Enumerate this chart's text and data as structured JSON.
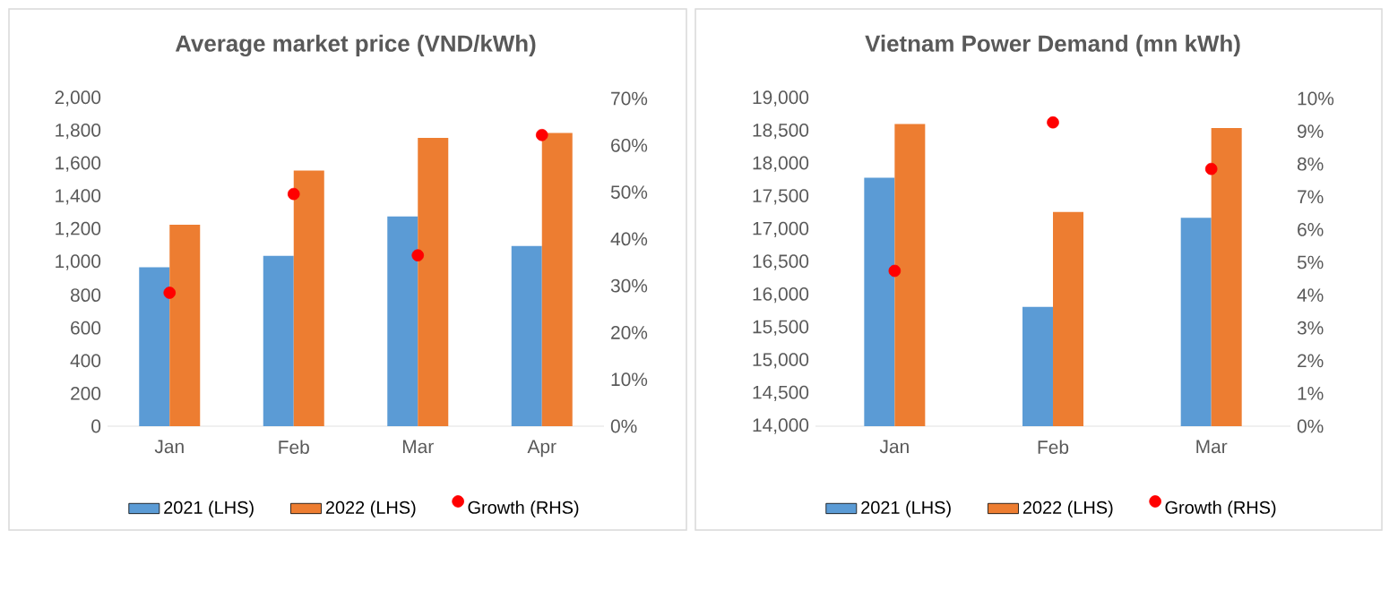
{
  "chart_data": [
    {
      "type": "bar",
      "title": "Average market price (VND/kWh)",
      "categories": [
        "Jan",
        "Feb",
        "Mar",
        "Apr"
      ],
      "series": [
        {
          "name": "2021 (LHS)",
          "color": "#5b9bd5",
          "values": [
            970,
            1040,
            1280,
            1100
          ]
        },
        {
          "name": "2022 (LHS)",
          "color": "#ed7d31",
          "values": [
            1230,
            1560,
            1760,
            1790
          ]
        },
        {
          "name": "Growth (RHS)",
          "type": "scatter",
          "axis": "y2",
          "color": "#ff0000",
          "x": [
            "Jan",
            "Feb",
            "Mar",
            "Apr"
          ],
          "values": [
            28.5,
            49.6,
            36.5,
            62.2
          ]
        }
      ],
      "ylim": [
        0,
        2000
      ],
      "yticks": [
        0,
        200,
        400,
        600,
        800,
        {
          "value": 1000,
          "label": "1,000"
        },
        {
          "value": 1200,
          "label": "1,200"
        },
        {
          "value": 1400,
          "label": "1,400"
        },
        {
          "value": 1600,
          "label": "1,600"
        },
        {
          "value": 1800,
          "label": "1,800"
        },
        {
          "value": 2000,
          "label": "2,000"
        }
      ],
      "y2lim": [
        0,
        70
      ],
      "y2ticks": [
        {
          "value": 0,
          "label": "0%"
        },
        {
          "value": 10,
          "label": "10%"
        },
        {
          "value": 20,
          "label": "20%"
        },
        {
          "value": 30,
          "label": "30%"
        },
        {
          "value": 40,
          "label": "40%"
        },
        {
          "value": 50,
          "label": "50%"
        },
        {
          "value": 60,
          "label": "60%"
        },
        {
          "value": 70,
          "label": "70%"
        }
      ],
      "grid": false,
      "legend": "bottom"
    },
    {
      "type": "bar",
      "title": "Vietnam Power Demand (mn kWh)",
      "categories": [
        "Jan",
        "Feb",
        "Mar"
      ],
      "series": [
        {
          "name": "2021 (LHS)",
          "color": "#5b9bd5",
          "values": [
            17790,
            15820,
            17180
          ]
        },
        {
          "name": "2022 (LHS)",
          "color": "#ed7d31",
          "values": [
            18610,
            17270,
            18550
          ]
        },
        {
          "name": "Growth (RHS)",
          "type": "scatter",
          "axis": "y2",
          "color": "#ff0000",
          "x": [
            "Jan",
            "Feb",
            "Mar"
          ],
          "values": [
            4.74,
            9.27,
            7.85
          ]
        }
      ],
      "ylim": [
        14000,
        19000
      ],
      "yticks": [
        {
          "value": 14000,
          "label": "14,000"
        },
        {
          "value": 14500,
          "label": "14,500"
        },
        {
          "value": 15000,
          "label": "15,000"
        },
        {
          "value": 15500,
          "label": "15,500"
        },
        {
          "value": 16000,
          "label": "16,000"
        },
        {
          "value": 16500,
          "label": "16,500"
        },
        {
          "value": 17000,
          "label": "17,000"
        },
        {
          "value": 17500,
          "label": "17,500"
        },
        {
          "value": 18000,
          "label": "18,000"
        },
        {
          "value": 18500,
          "label": "18,500"
        },
        {
          "value": 19000,
          "label": "19,000"
        }
      ],
      "y2lim": [
        0,
        10
      ],
      "y2ticks": [
        {
          "value": 0,
          "label": "0%"
        },
        {
          "value": 1,
          "label": "1%"
        },
        {
          "value": 2,
          "label": "2%"
        },
        {
          "value": 3,
          "label": "3%"
        },
        {
          "value": 4,
          "label": "4%"
        },
        {
          "value": 5,
          "label": "5%"
        },
        {
          "value": 6,
          "label": "6%"
        },
        {
          "value": 7,
          "label": "7%"
        },
        {
          "value": 8,
          "label": "8%"
        },
        {
          "value": 9,
          "label": "9%"
        },
        {
          "value": 10,
          "label": "10%"
        }
      ],
      "grid": false,
      "legend": "bottom"
    }
  ]
}
